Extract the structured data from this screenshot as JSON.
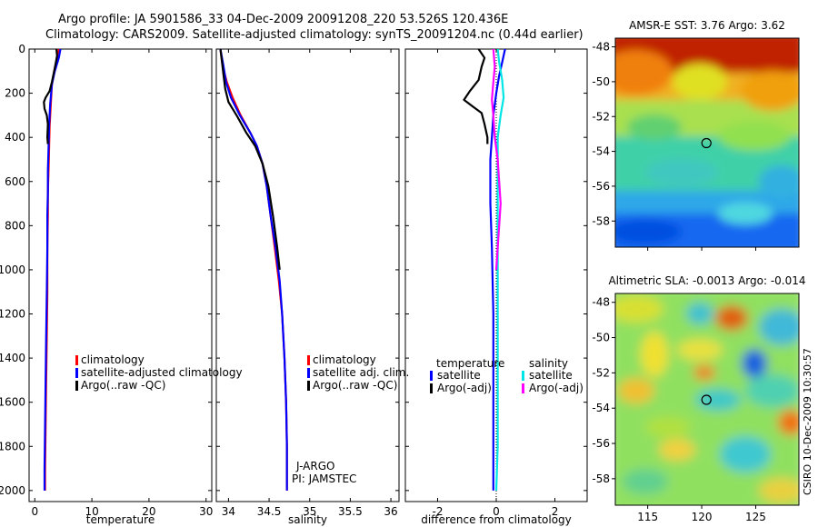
{
  "title": {
    "line1": "Argo profile: JA 5901586_33 04-Dec-2009 20091208_220 53.526S 120.436E",
    "line2": "Climatology: CARS2009. Satellite-adjusted climatology: synTS_20091204.nc (0.44d earlier)"
  },
  "side_label": "CSIRO 10-Dec-2009 10:30:57",
  "colors": {
    "clim": "#ff0000",
    "sat": "#0000ff",
    "argo": "#000000",
    "sal_sat": "#00e5e5",
    "sal_argo": "#ff00ff",
    "grid": "#000000"
  },
  "chart_data": [
    {
      "type": "line",
      "name": "temperature-profile",
      "xlabel": "temperature",
      "xlim": [
        -1,
        31
      ],
      "ylim": [
        2050,
        0
      ],
      "xticks": [
        0,
        10,
        20,
        30
      ],
      "xticklabels": [
        "0",
        "10",
        "20",
        "30"
      ],
      "yticks": [
        0,
        200,
        400,
        600,
        800,
        1000,
        1200,
        1400,
        1600,
        1800,
        2000
      ],
      "yticklabels": [
        "0",
        "200",
        "400",
        "600",
        "800",
        "1000",
        "1200",
        "1400",
        "1600",
        "1800",
        "2000"
      ],
      "legend": [
        "climatology",
        "satellite-adjusted climatology",
        "Argo(..raw -QC)"
      ],
      "series": [
        {
          "name": "climatology",
          "color": "clim",
          "points": [
            [
              4.2,
              0
            ],
            [
              4.0,
              40
            ],
            [
              3.4,
              100
            ],
            [
              3.0,
              160
            ],
            [
              2.8,
              250
            ],
            [
              2.6,
              350
            ],
            [
              2.5,
              450
            ],
            [
              2.4,
              550
            ],
            [
              2.3,
              650
            ],
            [
              2.3,
              750
            ],
            [
              2.2,
              900
            ],
            [
              2.2,
              1100
            ],
            [
              2.1,
              1300
            ],
            [
              2.0,
              1500
            ],
            [
              1.9,
              1700
            ],
            [
              1.8,
              1900
            ],
            [
              1.8,
              2000
            ]
          ]
        },
        {
          "name": "satellite-adjusted climatology",
          "color": "sat",
          "points": [
            [
              4.5,
              0
            ],
            [
              4.2,
              40
            ],
            [
              3.5,
              100
            ],
            [
              3.0,
              160
            ],
            [
              2.7,
              250
            ],
            [
              2.5,
              350
            ],
            [
              2.4,
              450
            ],
            [
              2.3,
              550
            ],
            [
              2.3,
              650
            ],
            [
              2.2,
              750
            ],
            [
              2.2,
              900
            ],
            [
              2.1,
              1100
            ],
            [
              2.0,
              1300
            ],
            [
              1.9,
              1500
            ],
            [
              1.8,
              1700
            ],
            [
              1.7,
              1900
            ],
            [
              1.7,
              2000
            ]
          ]
        },
        {
          "name": "Argo(..raw -QC)",
          "color": "argo",
          "points": [
            [
              3.8,
              0
            ],
            [
              3.9,
              30
            ],
            [
              3.7,
              60
            ],
            [
              3.4,
              100
            ],
            [
              3.0,
              150
            ],
            [
              2.6,
              190
            ],
            [
              1.9,
              220
            ],
            [
              1.6,
              240
            ],
            [
              1.7,
              270
            ],
            [
              2.1,
              300
            ],
            [
              2.3,
              340
            ],
            [
              2.2,
              400
            ],
            [
              2.3,
              430
            ]
          ]
        }
      ]
    },
    {
      "type": "line",
      "name": "salinity-profile",
      "xlabel": "salinity",
      "xlim": [
        33.85,
        36.1
      ],
      "ylim": [
        2050,
        0
      ],
      "xticks": [
        34,
        34.5,
        35,
        35.5,
        36
      ],
      "xticklabels": [
        "34",
        "34.5",
        "35",
        "35.5",
        "36"
      ],
      "legend": [
        "climatology",
        "satellite adj. clim.",
        "Argo(..raw -QC)"
      ],
      "annotations": [
        "J-ARGO",
        "PI: JAMSTEC"
      ],
      "series": [
        {
          "name": "climatology",
          "color": "clim",
          "points": [
            [
              33.9,
              0
            ],
            [
              33.93,
              80
            ],
            [
              33.98,
              150
            ],
            [
              34.05,
              220
            ],
            [
              34.15,
              300
            ],
            [
              34.27,
              380
            ],
            [
              34.35,
              440
            ],
            [
              34.42,
              520
            ],
            [
              34.47,
              620
            ],
            [
              34.52,
              760
            ],
            [
              34.57,
              900
            ],
            [
              34.62,
              1050
            ],
            [
              34.66,
              1200
            ],
            [
              34.69,
              1400
            ],
            [
              34.71,
              1600
            ],
            [
              34.72,
              1800
            ],
            [
              34.72,
              2000
            ]
          ]
        },
        {
          "name": "satellite adj. clim.",
          "color": "sat",
          "points": [
            [
              33.9,
              0
            ],
            [
              33.94,
              80
            ],
            [
              33.97,
              150
            ],
            [
              34.03,
              220
            ],
            [
              34.14,
              300
            ],
            [
              34.27,
              380
            ],
            [
              34.35,
              440
            ],
            [
              34.42,
              520
            ],
            [
              34.47,
              620
            ],
            [
              34.52,
              760
            ],
            [
              34.58,
              900
            ],
            [
              34.63,
              1050
            ],
            [
              34.66,
              1200
            ],
            [
              34.69,
              1400
            ],
            [
              34.71,
              1600
            ],
            [
              34.72,
              1800
            ],
            [
              34.72,
              2000
            ]
          ]
        },
        {
          "name": "Argo(..raw -QC)",
          "color": "argo",
          "points": [
            [
              33.9,
              0
            ],
            [
              33.92,
              60
            ],
            [
              33.94,
              120
            ],
            [
              33.96,
              180
            ],
            [
              34.0,
              240
            ],
            [
              34.1,
              300
            ],
            [
              34.22,
              380
            ],
            [
              34.33,
              440
            ],
            [
              34.42,
              520
            ],
            [
              34.49,
              620
            ],
            [
              34.55,
              760
            ],
            [
              34.6,
              900
            ],
            [
              34.63,
              1000
            ]
          ]
        }
      ]
    },
    {
      "type": "line",
      "name": "difference-profile",
      "xlabel": "difference from climatology",
      "xlim": [
        -3.1,
        3.1
      ],
      "ylim": [
        2050,
        0
      ],
      "xticks": [
        -2,
        0,
        2
      ],
      "xticklabels": [
        "-2",
        "0",
        "2"
      ],
      "legend_left": {
        "title": "temperature",
        "items": [
          "satellite",
          "Argo(-adj)"
        ]
      },
      "legend_right": {
        "title": "salinity",
        "items": [
          "satellite",
          "Argo(-adj)"
        ]
      },
      "series": [
        {
          "name": "temperature satellite",
          "color": "sat",
          "points": [
            [
              0.3,
              0
            ],
            [
              0.2,
              60
            ],
            [
              0.1,
              120
            ],
            [
              0.0,
              200
            ],
            [
              -0.1,
              300
            ],
            [
              -0.15,
              400
            ],
            [
              -0.2,
              500
            ],
            [
              -0.2,
              700
            ],
            [
              -0.15,
              900
            ],
            [
              -0.1,
              1200
            ],
            [
              -0.1,
              1500
            ],
            [
              -0.1,
              1800
            ],
            [
              -0.1,
              2000
            ]
          ]
        },
        {
          "name": "temperature Argo(-adj)",
          "color": "argo",
          "points": [
            [
              -0.6,
              0
            ],
            [
              -0.4,
              40
            ],
            [
              -0.5,
              80
            ],
            [
              -0.6,
              140
            ],
            [
              -0.9,
              190
            ],
            [
              -1.1,
              230
            ],
            [
              -0.8,
              260
            ],
            [
              -0.5,
              290
            ],
            [
              -0.4,
              340
            ],
            [
              -0.3,
              400
            ],
            [
              -0.3,
              430
            ]
          ]
        },
        {
          "name": "salinity satellite",
          "color": "sal_sat",
          "points": [
            [
              0.05,
              0
            ],
            [
              0.1,
              60
            ],
            [
              0.2,
              140
            ],
            [
              0.25,
              220
            ],
            [
              0.15,
              300
            ],
            [
              0.05,
              400
            ],
            [
              0.05,
              600
            ],
            [
              0.05,
              900
            ],
            [
              0.05,
              1200
            ],
            [
              0.05,
              1500
            ],
            [
              0.05,
              1800
            ],
            [
              0.0,
              2000
            ]
          ]
        },
        {
          "name": "salinity Argo(-adj)",
          "color": "sal_argo",
          "points": [
            [
              -0.1,
              0
            ],
            [
              -0.05,
              80
            ],
            [
              -0.1,
              150
            ],
            [
              -0.15,
              230
            ],
            [
              -0.1,
              300
            ],
            [
              -0.05,
              400
            ],
            [
              0.05,
              500
            ],
            [
              0.1,
              600
            ],
            [
              0.15,
              700
            ],
            [
              0.1,
              800
            ],
            [
              0.05,
              900
            ],
            [
              0.0,
              1000
            ]
          ]
        }
      ]
    },
    {
      "type": "heatmap",
      "name": "sst-map",
      "title": "AMSR-E SST: 3.76 Argo: 3.62",
      "xlim": [
        112,
        129
      ],
      "ylim": [
        -59.5,
        -47.5
      ],
      "xticks": [
        115,
        120,
        125
      ],
      "yticks": [
        -48,
        -50,
        -52,
        -54,
        -56,
        -58
      ],
      "yticklabels": [
        "-48",
        "-50",
        "-52",
        "-54",
        "-56",
        "-58"
      ],
      "marker": {
        "lon": 120.436,
        "lat": -53.526
      }
    },
    {
      "type": "heatmap",
      "name": "sla-map",
      "title": "Altimetric SLA: -0.0013 Argo: -0.014",
      "xlim": [
        112,
        129
      ],
      "ylim": [
        -59.5,
        -47.5
      ],
      "xticks": [
        115,
        120,
        125
      ],
      "xticklabels": [
        "115",
        "120",
        "125"
      ],
      "yticks": [
        -48,
        -50,
        -52,
        -54,
        -56,
        -58
      ],
      "yticklabels": [
        "-48",
        "-50",
        "-52",
        "-54",
        "-56",
        "-58"
      ],
      "marker": {
        "lon": 120.436,
        "lat": -53.526
      }
    }
  ]
}
